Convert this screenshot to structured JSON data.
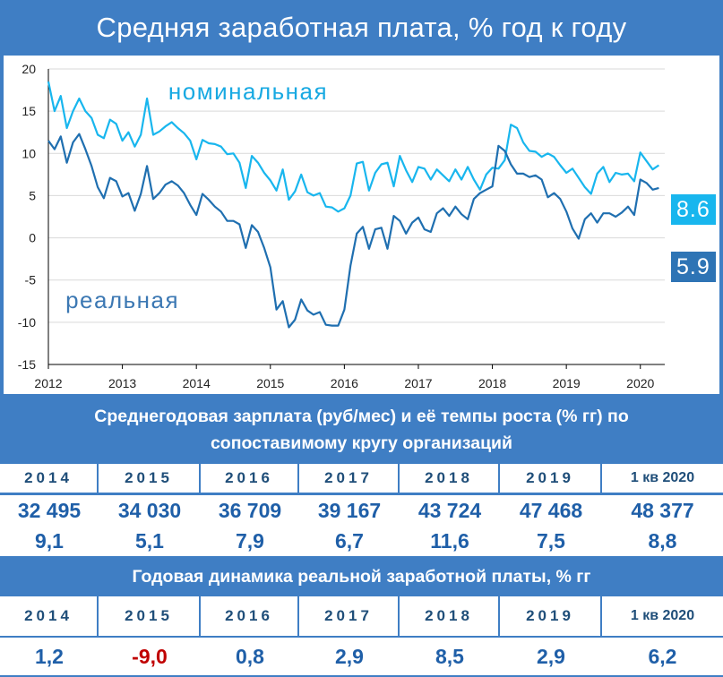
{
  "title": "Средняя заработная плата, % год к году",
  "chart_data": {
    "type": "line",
    "xlim": [
      2012,
      2020.33
    ],
    "ylim": [
      -15,
      20
    ],
    "y_ticks": [
      -15,
      -10,
      -5,
      0,
      5,
      10,
      15,
      20
    ],
    "x_ticks": [
      2012,
      2013,
      2014,
      2015,
      2016,
      2017,
      2018,
      2019,
      2020
    ],
    "x_tick_labels": [
      "2012",
      "2013",
      "2014",
      "2015",
      "2016",
      "2017",
      "2018",
      "2019",
      "2020"
    ],
    "y_tick_labels": [
      "-15",
      "-10",
      "-5",
      "0",
      "5",
      "10",
      "15",
      "20"
    ],
    "grid": "horizontal",
    "series": [
      {
        "name": "номинальная",
        "color": "#18b6ee",
        "last_value_label": "8.6",
        "x": [
          2012.0,
          2012.083,
          2012.167,
          2012.25,
          2012.333,
          2012.417,
          2012.5,
          2012.583,
          2012.667,
          2012.75,
          2012.833,
          2012.917,
          2013.0,
          2013.083,
          2013.167,
          2013.25,
          2013.333,
          2013.417,
          2013.5,
          2013.583,
          2013.667,
          2013.75,
          2013.833,
          2013.917,
          2014.0,
          2014.083,
          2014.167,
          2014.25,
          2014.333,
          2014.417,
          2014.5,
          2014.583,
          2014.667,
          2014.75,
          2014.833,
          2014.917,
          2015.0,
          2015.083,
          2015.167,
          2015.25,
          2015.333,
          2015.417,
          2015.5,
          2015.583,
          2015.667,
          2015.75,
          2015.833,
          2015.917,
          2016.0,
          2016.083,
          2016.167,
          2016.25,
          2016.333,
          2016.417,
          2016.5,
          2016.583,
          2016.667,
          2016.75,
          2016.833,
          2016.917,
          2017.0,
          2017.083,
          2017.167,
          2017.25,
          2017.333,
          2017.417,
          2017.5,
          2017.583,
          2017.667,
          2017.75,
          2017.833,
          2017.917,
          2018.0,
          2018.083,
          2018.167,
          2018.25,
          2018.333,
          2018.417,
          2018.5,
          2018.583,
          2018.667,
          2018.75,
          2018.833,
          2018.917,
          2019.0,
          2019.083,
          2019.167,
          2019.25,
          2019.333,
          2019.417,
          2019.5,
          2019.583,
          2019.667,
          2019.75,
          2019.833,
          2019.917,
          2020.0,
          2020.083,
          2020.167,
          2020.25
        ],
        "values": [
          18.5,
          15.0,
          16.8,
          13.0,
          15.0,
          16.5,
          15.0,
          14.2,
          12.2,
          11.8,
          14.0,
          13.5,
          11.5,
          12.5,
          10.8,
          12.2,
          16.5,
          12.2,
          12.6,
          13.2,
          13.7,
          13.0,
          12.4,
          11.5,
          9.3,
          11.6,
          11.2,
          11.1,
          10.8,
          9.9,
          10.0,
          8.9,
          5.9,
          9.7,
          8.9,
          7.7,
          6.8,
          5.6,
          8.1,
          4.5,
          5.5,
          7.5,
          5.4,
          5.0,
          5.3,
          3.7,
          3.6,
          3.1,
          3.5,
          5.0,
          8.8,
          9.0,
          5.6,
          7.7,
          8.7,
          8.9,
          6.1,
          9.7,
          8.0,
          6.6,
          8.4,
          8.2,
          6.9,
          8.1,
          7.4,
          6.7,
          8.1,
          6.9,
          8.4,
          6.9,
          5.7,
          7.5,
          8.3,
          8.2,
          9.2,
          13.4,
          13.0,
          11.3,
          10.3,
          10.2,
          9.6,
          10.0,
          9.6,
          8.6,
          7.7,
          8.2,
          7.1,
          6.0,
          5.2,
          7.6,
          8.4,
          6.6,
          7.7,
          7.5,
          7.6,
          6.7,
          10.1,
          9.1,
          8.1,
          8.6
        ]
      },
      {
        "name": "реальная",
        "color": "#1f6fb0",
        "last_value_label": "5.9",
        "x": [
          2012.0,
          2012.083,
          2012.167,
          2012.25,
          2012.333,
          2012.417,
          2012.5,
          2012.583,
          2012.667,
          2012.75,
          2012.833,
          2012.917,
          2013.0,
          2013.083,
          2013.167,
          2013.25,
          2013.333,
          2013.417,
          2013.5,
          2013.583,
          2013.667,
          2013.75,
          2013.833,
          2013.917,
          2014.0,
          2014.083,
          2014.167,
          2014.25,
          2014.333,
          2014.417,
          2014.5,
          2014.583,
          2014.667,
          2014.75,
          2014.833,
          2014.917,
          2015.0,
          2015.083,
          2015.167,
          2015.25,
          2015.333,
          2015.417,
          2015.5,
          2015.583,
          2015.667,
          2015.75,
          2015.833,
          2015.917,
          2016.0,
          2016.083,
          2016.167,
          2016.25,
          2016.333,
          2016.417,
          2016.5,
          2016.583,
          2016.667,
          2016.75,
          2016.833,
          2016.917,
          2017.0,
          2017.083,
          2017.167,
          2017.25,
          2017.333,
          2017.417,
          2017.5,
          2017.583,
          2017.667,
          2017.75,
          2017.833,
          2017.917,
          2018.0,
          2018.083,
          2018.167,
          2018.25,
          2018.333,
          2018.417,
          2018.5,
          2018.583,
          2018.667,
          2018.75,
          2018.833,
          2018.917,
          2019.0,
          2019.083,
          2019.167,
          2019.25,
          2019.333,
          2019.417,
          2019.5,
          2019.583,
          2019.667,
          2019.75,
          2019.833,
          2019.917,
          2020.0,
          2020.083,
          2020.167,
          2020.25
        ],
        "values": [
          11.5,
          10.5,
          12.0,
          8.9,
          11.3,
          12.3,
          10.5,
          8.5,
          6.0,
          4.7,
          7.1,
          6.7,
          4.9,
          5.3,
          3.2,
          5.2,
          8.5,
          4.6,
          5.3,
          6.3,
          6.7,
          6.2,
          5.3,
          3.9,
          2.7,
          5.2,
          4.5,
          3.7,
          3.1,
          2.0,
          2.0,
          1.6,
          -1.2,
          1.5,
          0.7,
          -1.2,
          -3.5,
          -8.5,
          -7.5,
          -10.6,
          -9.7,
          -7.3,
          -8.6,
          -9.1,
          -8.8,
          -10.3,
          -10.4,
          -10.4,
          -8.5,
          -3.3,
          0.5,
          1.3,
          -1.3,
          1.0,
          1.2,
          -1.3,
          2.6,
          2.0,
          0.5,
          1.8,
          2.4,
          1.0,
          0.7,
          2.9,
          3.5,
          2.6,
          3.7,
          2.8,
          2.2,
          4.6,
          5.3,
          5.7,
          6.1,
          10.9,
          10.3,
          8.7,
          7.6,
          7.6,
          7.2,
          7.4,
          6.9,
          4.8,
          5.3,
          4.6,
          3.1,
          1.1,
          -0.1,
          2.2,
          2.9,
          1.8,
          2.9,
          2.9,
          2.5,
          3.0,
          3.7,
          2.7,
          6.9,
          6.5,
          5.7,
          5.9
        ]
      }
    ]
  },
  "table1": {
    "heading": "Среднегодовая зарплата (руб/мес) и её темпы роста (% гг)  по сопоставимому кругу организаций",
    "years": [
      "2014",
      "2015",
      "2016",
      "2017",
      "2018",
      "2019",
      "1 кв 2020"
    ],
    "salaries": [
      "32 495",
      "34 030",
      "36 709",
      "39 167",
      "43 724",
      "47 468",
      "48 377"
    ],
    "growth": [
      "9,1",
      "5,1",
      "7,9",
      "6,7",
      "11,6",
      "7,5",
      "8,8"
    ]
  },
  "table2": {
    "heading": "Годовая динамика реальной заработной платы, % гг",
    "years": [
      "2014",
      "2015",
      "2016",
      "2017",
      "2018",
      "2019",
      "1 кв 2020"
    ],
    "values": [
      "1,2",
      "-9,0",
      "0,8",
      "2,9",
      "8,5",
      "2,9",
      "6,2"
    ]
  }
}
